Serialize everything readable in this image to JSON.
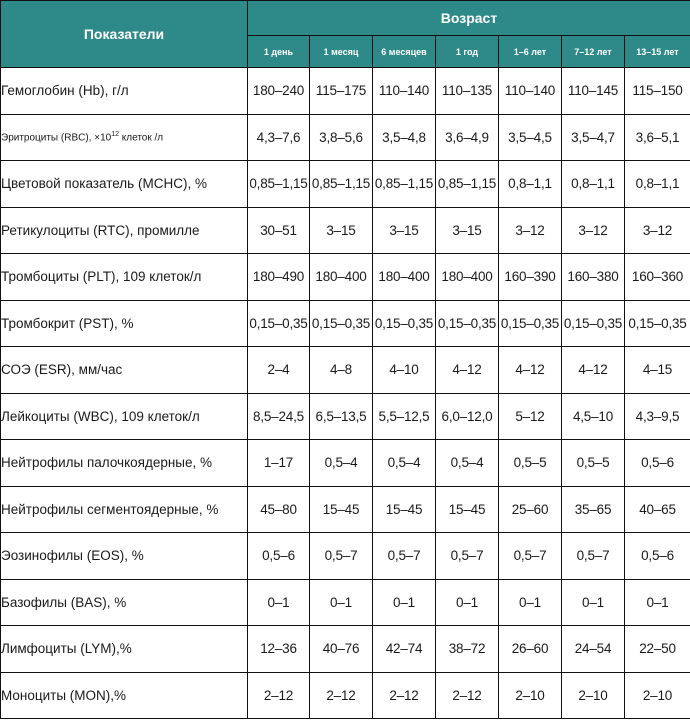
{
  "table": {
    "header": {
      "param_label": "Показатели",
      "age_label": "Возраст",
      "ages": [
        "1 день",
        "1 месяц",
        "6 месяцев",
        "1 год",
        "1–6 лет",
        "7–12 лет",
        "13–15 лет"
      ]
    },
    "rows": [
      {
        "name": "Гемоглобин (Hb), г/л",
        "values": [
          "180–240",
          "115–175",
          "110–140",
          "110–135",
          "110–140",
          "110–145",
          "115–150"
        ]
      },
      {
        "name_prefix": "Эритроциты (RBC), ×10",
        "name_sup": "12",
        "name_suffix": " клеток /л",
        "values": [
          "4,3–7,6",
          "3,8–5,6",
          "3,5–4,8",
          "3,6–4,9",
          "3,5–4,5",
          "3,5–4,7",
          "3,6–5,1"
        ]
      },
      {
        "name": "Цветовой показатель (MCHC), %",
        "values": [
          "0,85–1,15",
          "0,85–1,15",
          "0,85–1,15",
          "0,85–1,15",
          "0,8–1,1",
          "0,8–1,1",
          "0,8–1,1"
        ]
      },
      {
        "name": "Ретикулоциты (RTC), промилле",
        "values": [
          "30–51",
          "3–15",
          "3–15",
          "3–15",
          "3–12",
          "3–12",
          "3–12"
        ]
      },
      {
        "name": "Тромбоциты (PLT), 109 клеток/л",
        "values": [
          "180–490",
          "180–400",
          "180–400",
          "180–400",
          "160–390",
          "160–380",
          "160–360"
        ]
      },
      {
        "name": "Тромбокрит (PST), %",
        "values": [
          "0,15–0,35",
          "0,15–0,35",
          "0,15–0,35",
          "0,15–0,35",
          "0,15–0,35",
          "0,15–0,35",
          "0,15–0,35"
        ]
      },
      {
        "name": "СОЭ (ESR), мм/час",
        "values": [
          "2–4",
          "4–8",
          "4–10",
          "4–12",
          "4–12",
          "4–12",
          "4–15"
        ]
      },
      {
        "name": "Лейкоциты (WBC), 109 клеток/л",
        "values": [
          "8,5–24,5",
          "6,5–13,5",
          "5,5–12,5",
          "6,0–12,0",
          "5–12",
          "4,5–10",
          "4,3–9,5"
        ]
      },
      {
        "name": "Нейтрофилы палочкоядерные, %",
        "values": [
          "1–17",
          "0,5–4",
          "0,5–4",
          "0,5–4",
          "0,5–5",
          "0,5–5",
          "0,5–6"
        ]
      },
      {
        "name": "Нейтрофилы сегментоядерные, %",
        "values": [
          "45–80",
          "15–45",
          "15–45",
          "15–45",
          "25–60",
          "35–65",
          "40–65"
        ]
      },
      {
        "name": "Эозинофилы (EOS), %",
        "values": [
          "0,5–6",
          "0,5–7",
          "0,5–7",
          "0,5–7",
          "0,5–7",
          "0,5–7",
          "0,5–6"
        ]
      },
      {
        "name": "Базофилы (BAS), %",
        "values": [
          "0–1",
          "0–1",
          "0–1",
          "0–1",
          "0–1",
          "0–1",
          "0–1"
        ]
      },
      {
        "name": "Лимфоциты (LYM),%",
        "values": [
          "12–36",
          "40–76",
          "42–74",
          "38–72",
          "26–60",
          "24–54",
          "22–50"
        ]
      },
      {
        "name": "Моноциты (MON),%",
        "values": [
          "2–12",
          "2–12",
          "2–12",
          "2–12",
          "2–10",
          "2–10",
          "2–10"
        ]
      }
    ]
  }
}
